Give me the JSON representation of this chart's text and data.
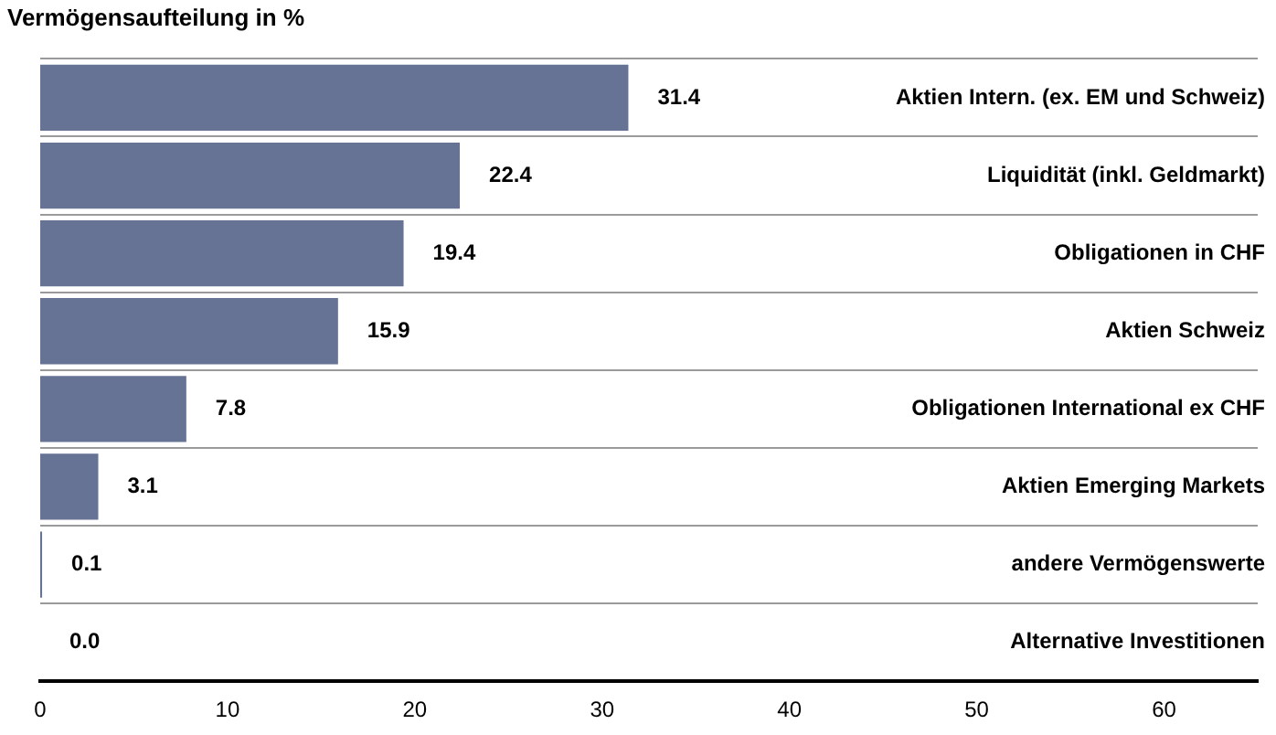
{
  "chart_data": {
    "type": "bar",
    "orientation": "horizontal",
    "title": "Vermögensaufteilung in %",
    "categories": [
      "Aktien Intern. (ex. EM und Schweiz)",
      "Liquidität (inkl. Geldmarkt)",
      "Obligationen in CHF",
      "Aktien Schweiz",
      "Obligationen International ex CHF",
      "Aktien Emerging Markets",
      "andere Vermögenswerte",
      "Alternative Investitionen"
    ],
    "values": [
      31.4,
      22.4,
      19.4,
      15.9,
      7.8,
      3.1,
      0.1,
      0.0
    ],
    "color": "#667394",
    "xlim": [
      0,
      65
    ],
    "xticks": [
      0,
      10,
      20,
      30,
      40,
      50,
      60
    ],
    "value_labels": [
      "31.4",
      "22.4",
      "19.4",
      "15.9",
      "7.8",
      "3.1",
      "0.1",
      "0.0"
    ],
    "grid": "y"
  }
}
